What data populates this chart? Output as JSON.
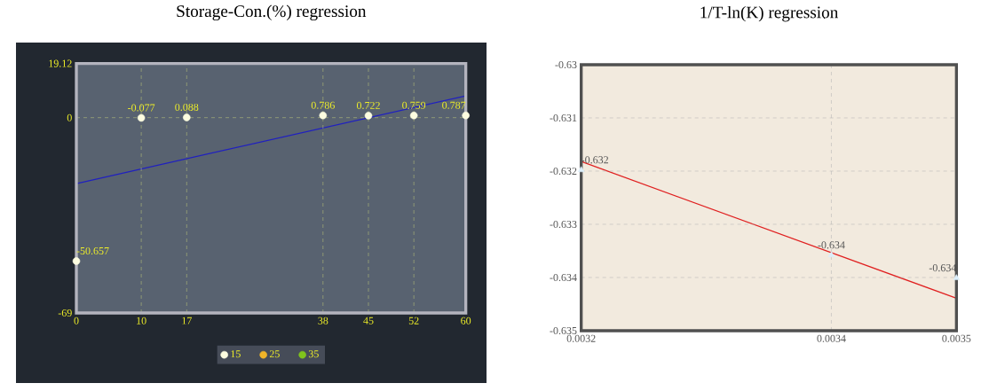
{
  "chart_data": [
    {
      "type": "scatter",
      "title": "Storage-Con.(%) regression",
      "marker": "circle",
      "grid": true,
      "legend": "bottom",
      "x": [
        0,
        10,
        17,
        38,
        45,
        52,
        60
      ],
      "xlim": [
        0,
        60
      ],
      "xticks": [
        0,
        10,
        17,
        38,
        45,
        52,
        60
      ],
      "ylim": [
        -69,
        19.12
      ],
      "yticks": [
        -69,
        0,
        19.12
      ],
      "series": [
        {
          "name": "15",
          "color": "#fdfde0",
          "values": [
            -50.657,
            -0.077,
            0.088,
            0.786,
            0.722,
            0.759,
            0.787
          ],
          "value_labels": [
            "-50.657",
            "-0.077",
            "0.088",
            "0.786",
            "0.722",
            "0.759",
            "0.787"
          ]
        },
        {
          "name": "25",
          "color": "#f0b428",
          "values": [
            null,
            null,
            null,
            null,
            null,
            null,
            null
          ]
        },
        {
          "name": "35",
          "color": "#80c41c",
          "values": [
            null,
            null,
            null,
            null,
            null,
            null,
            null
          ]
        },
        {
          "type": "line",
          "marker": "none",
          "color": "#2020c0",
          "x": [
            0,
            60
          ],
          "values": [
            -23.3,
            7.7
          ]
        }
      ]
    },
    {
      "type": "scatter",
      "title": "1/T-ln(K) regression",
      "marker": "triangle",
      "grid": true,
      "x": [
        0.0032,
        0.0034,
        0.0035
      ],
      "xlim": [
        0.0032,
        0.0035
      ],
      "xticks": [
        0.0032,
        0.0034,
        0.0035
      ],
      "ylim": [
        -0.635,
        -0.63
      ],
      "yticks": [
        -0.635,
        -0.634,
        -0.633,
        -0.632,
        -0.631,
        -0.63
      ],
      "series": [
        {
          "color": "#dceefa",
          "values": [
            -0.63198,
            -0.63358,
            -0.63401
          ],
          "value_labels": [
            "-0.632",
            "-0.634",
            "-0.634"
          ]
        },
        {
          "type": "line",
          "marker": "none",
          "color": "#e02020",
          "x": [
            0.0032,
            0.0035
          ],
          "values": [
            -0.63182,
            -0.63439
          ]
        }
      ]
    }
  ]
}
